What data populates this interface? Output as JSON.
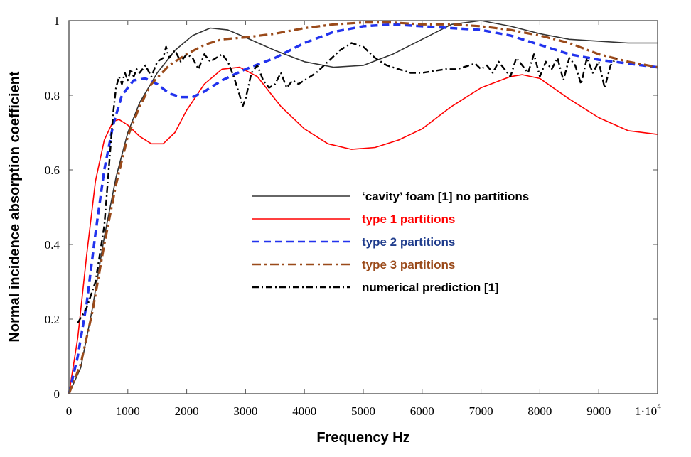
{
  "chart_data": {
    "type": "line",
    "title": "",
    "xlabel": "Frequency Hz",
    "ylabel": "Normal incidence absorption coefficient",
    "xlim": [
      0,
      10000
    ],
    "ylim": [
      0,
      1
    ],
    "grid": false,
    "legend_position": "center-right",
    "x_ticks": [
      {
        "value": 0,
        "label": "0"
      },
      {
        "value": 1000,
        "label": "1000"
      },
      {
        "value": 2000,
        "label": "2000"
      },
      {
        "value": 3000,
        "label": "3000"
      },
      {
        "value": 4000,
        "label": "4000"
      },
      {
        "value": 5000,
        "label": "5000"
      },
      {
        "value": 6000,
        "label": "6000"
      },
      {
        "value": 7000,
        "label": "7000"
      },
      {
        "value": 8000,
        "label": "8000"
      },
      {
        "value": 9000,
        "label": "9000"
      }
    ],
    "x_end_tick": {
      "value": 10000,
      "mantissa": "1·10",
      "exponent": "4"
    },
    "y_ticks": [
      {
        "value": 0,
        "label": "0"
      },
      {
        "value": 0.2,
        "label": "0.2"
      },
      {
        "value": 0.4,
        "label": "0.4"
      },
      {
        "value": 0.6,
        "label": "0.6"
      },
      {
        "value": 0.8,
        "label": "0.8"
      },
      {
        "value": 1,
        "label": "1"
      }
    ],
    "series": [
      {
        "name": "‘cavity’ foam [1] no partitions",
        "color": "#333333",
        "dash": "solid",
        "width": 1.6,
        "label_color": "#000000",
        "x": [
          0,
          200,
          400,
          600,
          800,
          1000,
          1200,
          1500,
          1800,
          2100,
          2400,
          2700,
          3000,
          3500,
          4000,
          4500,
          5000,
          5500,
          6000,
          6500,
          7000,
          7500,
          8000,
          8500,
          9000,
          9500,
          10000
        ],
        "y": [
          0,
          0.07,
          0.23,
          0.42,
          0.58,
          0.7,
          0.78,
          0.86,
          0.92,
          0.96,
          0.98,
          0.975,
          0.955,
          0.92,
          0.89,
          0.875,
          0.88,
          0.91,
          0.95,
          0.99,
          1.0,
          0.985,
          0.965,
          0.95,
          0.945,
          0.94,
          0.94
        ]
      },
      {
        "name": "type 1 partitions",
        "color": "#ff0000",
        "dash": "solid",
        "width": 1.6,
        "label_color": "#ff0000",
        "x": [
          0,
          150,
          300,
          450,
          600,
          750,
          850,
          1000,
          1200,
          1400,
          1600,
          1800,
          2000,
          2300,
          2600,
          2900,
          3200,
          3600,
          4000,
          4400,
          4800,
          5200,
          5600,
          6000,
          6500,
          7000,
          7500,
          7700,
          8000,
          8500,
          9000,
          9500,
          10000
        ],
        "y": [
          0,
          0.15,
          0.37,
          0.57,
          0.68,
          0.73,
          0.735,
          0.72,
          0.69,
          0.67,
          0.67,
          0.7,
          0.76,
          0.83,
          0.87,
          0.875,
          0.85,
          0.77,
          0.71,
          0.67,
          0.655,
          0.66,
          0.68,
          0.71,
          0.77,
          0.82,
          0.85,
          0.855,
          0.845,
          0.79,
          0.74,
          0.705,
          0.695
        ]
      },
      {
        "name": "type 2 partitions",
        "color": "#2233ee",
        "dash": "10 6",
        "width": 3.5,
        "label_color": "#1f3c8c",
        "x": [
          0,
          150,
          300,
          450,
          600,
          750,
          900,
          1100,
          1300,
          1500,
          1700,
          1900,
          2100,
          2300,
          2600,
          3000,
          3500,
          4000,
          4500,
          5000,
          5500,
          6000,
          6500,
          7000,
          7500,
          8000,
          8500,
          9000,
          9500,
          10000
        ],
        "y": [
          0,
          0.1,
          0.24,
          0.43,
          0.6,
          0.72,
          0.8,
          0.84,
          0.845,
          0.83,
          0.805,
          0.795,
          0.795,
          0.81,
          0.84,
          0.87,
          0.9,
          0.94,
          0.97,
          0.985,
          0.99,
          0.985,
          0.98,
          0.975,
          0.96,
          0.935,
          0.91,
          0.895,
          0.885,
          0.875
        ]
      },
      {
        "name": "type 3 partitions",
        "color": "#9a4a1a",
        "dash": "12 5 3 5",
        "width": 3.2,
        "label_color": "#9a4a1a",
        "x": [
          0,
          200,
          400,
          600,
          800,
          1000,
          1200,
          1400,
          1700,
          2000,
          2300,
          2600,
          3000,
          3500,
          4000,
          4500,
          5000,
          5500,
          6000,
          6500,
          7000,
          7500,
          8000,
          8500,
          9000,
          9500,
          10000
        ],
        "y": [
          0,
          0.08,
          0.22,
          0.4,
          0.56,
          0.69,
          0.77,
          0.83,
          0.88,
          0.91,
          0.935,
          0.95,
          0.955,
          0.965,
          0.98,
          0.99,
          0.995,
          0.995,
          0.99,
          0.99,
          0.985,
          0.975,
          0.96,
          0.94,
          0.91,
          0.89,
          0.875
        ]
      },
      {
        "name": "numerical prediction [1]",
        "color": "#000000",
        "dash": "9 4 2 4",
        "width": 2.4,
        "label_color": "#000000",
        "x": [
          150,
          300,
          450,
          600,
          700,
          750,
          800,
          850,
          900,
          950,
          1000,
          1050,
          1100,
          1150,
          1200,
          1300,
          1400,
          1500,
          1600,
          1650,
          1700,
          1800,
          1900,
          2000,
          2100,
          2200,
          2300,
          2400,
          2500,
          2600,
          2700,
          2800,
          2900,
          2950,
          3000,
          3100,
          3200,
          3300,
          3400,
          3500,
          3600,
          3700,
          3800,
          3900,
          4000,
          4200,
          4400,
          4600,
          4800,
          5000,
          5200,
          5400,
          5600,
          5800,
          6000,
          6200,
          6400,
          6600,
          6800,
          6900,
          7000,
          7100,
          7200,
          7300,
          7400,
          7500,
          7600,
          7700,
          7800,
          7900,
          8000,
          8100,
          8200,
          8300,
          8400,
          8500,
          8600,
          8700,
          8800,
          8900,
          9000,
          9100,
          9200,
          9300
        ],
        "y": [
          0.19,
          0.23,
          0.3,
          0.45,
          0.65,
          0.75,
          0.82,
          0.85,
          0.83,
          0.86,
          0.84,
          0.87,
          0.85,
          0.87,
          0.86,
          0.88,
          0.85,
          0.89,
          0.9,
          0.93,
          0.9,
          0.92,
          0.89,
          0.91,
          0.9,
          0.87,
          0.91,
          0.89,
          0.9,
          0.91,
          0.89,
          0.85,
          0.8,
          0.77,
          0.79,
          0.86,
          0.88,
          0.84,
          0.82,
          0.83,
          0.86,
          0.82,
          0.84,
          0.83,
          0.84,
          0.86,
          0.89,
          0.92,
          0.94,
          0.93,
          0.9,
          0.88,
          0.87,
          0.86,
          0.86,
          0.865,
          0.87,
          0.87,
          0.88,
          0.885,
          0.87,
          0.88,
          0.86,
          0.89,
          0.87,
          0.85,
          0.9,
          0.88,
          0.86,
          0.91,
          0.85,
          0.89,
          0.87,
          0.9,
          0.84,
          0.9,
          0.88,
          0.83,
          0.9,
          0.86,
          0.89,
          0.82,
          0.88,
          0.9
        ]
      }
    ]
  }
}
